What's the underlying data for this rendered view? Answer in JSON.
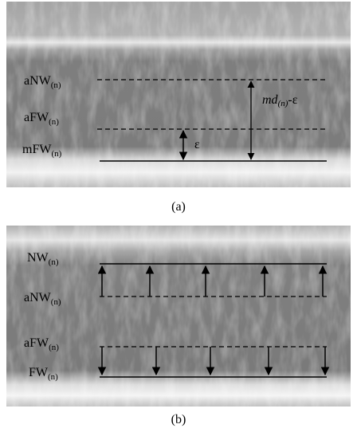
{
  "panel_a": {
    "caption": "(a)",
    "labels": [
      {
        "main": "aNW",
        "sub": "(n)"
      },
      {
        "main": "aFW",
        "sub": "(n)"
      },
      {
        "main": "mFW",
        "sub": "(n)"
      }
    ],
    "distance_label": {
      "main": "md",
      "sub": "(n)",
      "tail": "-ε"
    },
    "epsilon_label": "ε"
  },
  "panel_b": {
    "caption": "(b)",
    "labels": [
      {
        "main": "NW",
        "sub": "(n)"
      },
      {
        "main": "aNW",
        "sub": "(n)"
      },
      {
        "main": "aFW",
        "sub": "(n)"
      },
      {
        "main": "FW",
        "sub": "(n)"
      }
    ]
  }
}
